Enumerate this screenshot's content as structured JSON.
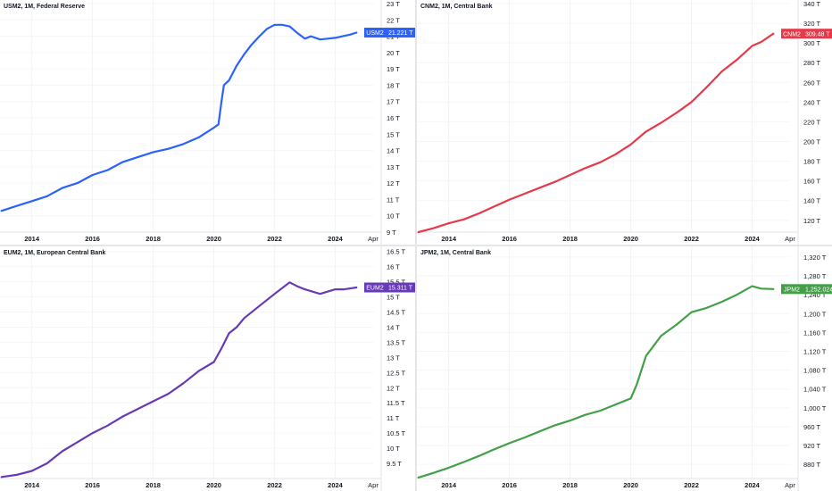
{
  "chart_data": [
    {
      "id": "usm2",
      "type": "line",
      "title": "USM2, 1M, Federal Reserve",
      "series": [
        {
          "name": "USM2",
          "color": "#2962ff",
          "x": [
            2013.0,
            2013.5,
            2014.0,
            2014.5,
            2015.0,
            2015.5,
            2016.0,
            2016.5,
            2017.0,
            2017.5,
            2018.0,
            2018.5,
            2019.0,
            2019.5,
            2020.0,
            2020.15,
            2020.25,
            2020.33,
            2020.5,
            2020.75,
            2021.0,
            2021.25,
            2021.5,
            2021.75,
            2022.0,
            2022.25,
            2022.5,
            2022.75,
            2023.0,
            2023.2,
            2023.5,
            2023.75,
            2024.0,
            2024.25,
            2024.5,
            2024.7
          ],
          "y": [
            10.3,
            10.6,
            10.9,
            11.2,
            11.7,
            12.0,
            12.5,
            12.8,
            13.3,
            13.6,
            13.9,
            14.1,
            14.4,
            14.8,
            15.4,
            15.6,
            17.0,
            18.0,
            18.3,
            19.2,
            19.9,
            20.5,
            21.0,
            21.45,
            21.7,
            21.7,
            21.6,
            21.2,
            20.85,
            21.0,
            20.8,
            20.85,
            20.9,
            21.0,
            21.1,
            21.221
          ]
        }
      ],
      "last_value_label": "21.221 T",
      "x_ticks": [
        "2014",
        "2016",
        "2018",
        "2020",
        "2022",
        "2024",
        "Apr"
      ],
      "y_ticks": [
        "9 T",
        "10 T",
        "11 T",
        "12 T",
        "13 T",
        "14 T",
        "15 T",
        "16 T",
        "17 T",
        "18 T",
        "19 T",
        "20 T",
        "21 T",
        "22 T",
        "23 T"
      ],
      "ylim": [
        9,
        23
      ]
    },
    {
      "id": "cnm2",
      "type": "line",
      "title": "CNM2, 1M, Central Bank",
      "series": [
        {
          "name": "CNM2",
          "color": "#e63a4a",
          "x": [
            2013.0,
            2013.5,
            2014.0,
            2014.5,
            2015.0,
            2015.5,
            2016.0,
            2016.5,
            2017.0,
            2017.5,
            2018.0,
            2018.5,
            2019.0,
            2019.5,
            2020.0,
            2020.5,
            2021.0,
            2021.5,
            2022.0,
            2022.5,
            2023.0,
            2023.5,
            2024.0,
            2024.3,
            2024.7
          ],
          "y": [
            108,
            112,
            117,
            121,
            127,
            134,
            141,
            147,
            153,
            159,
            166,
            173,
            179,
            187,
            197,
            210,
            219,
            229,
            240,
            255,
            271,
            283,
            297,
            301,
            309.48
          ]
        }
      ],
      "last_value_label": "309.48 T",
      "x_ticks": [
        "2014",
        "2016",
        "2018",
        "2020",
        "2022",
        "2024",
        "Apr"
      ],
      "y_ticks": [
        "120 T",
        "140 T",
        "160 T",
        "180 T",
        "200 T",
        "220 T",
        "240 T",
        "260 T",
        "280 T",
        "300 T",
        "320 T",
        "340 T"
      ],
      "ylim": [
        108,
        340
      ]
    },
    {
      "id": "eum2",
      "type": "line",
      "title": "EUM2, 1M, European Central Bank",
      "series": [
        {
          "name": "EUM2",
          "color": "#673ab7",
          "x": [
            2013.0,
            2013.5,
            2014.0,
            2014.5,
            2015.0,
            2015.5,
            2016.0,
            2016.5,
            2017.0,
            2017.5,
            2018.0,
            2018.5,
            2019.0,
            2019.5,
            2020.0,
            2020.25,
            2020.5,
            2020.75,
            2021.0,
            2021.5,
            2022.0,
            2022.5,
            2022.75,
            2023.0,
            2023.5,
            2024.0,
            2024.3,
            2024.7
          ],
          "y": [
            9.05,
            9.12,
            9.25,
            9.5,
            9.9,
            10.2,
            10.5,
            10.75,
            11.05,
            11.3,
            11.55,
            11.8,
            12.15,
            12.55,
            12.85,
            13.3,
            13.8,
            14.0,
            14.3,
            14.7,
            15.1,
            15.48,
            15.35,
            15.25,
            15.1,
            15.25,
            15.25,
            15.311
          ]
        }
      ],
      "last_value_label": "15.311 T",
      "x_ticks": [
        "2014",
        "2016",
        "2018",
        "2020",
        "2022",
        "2024",
        "Apr"
      ],
      "y_ticks": [
        "9.5 T",
        "10 T",
        "10.5 T",
        "11 T",
        "11.5 T",
        "12 T",
        "12.5 T",
        "13 T",
        "13.5 T",
        "14 T",
        "14.5 T",
        "15 T",
        "15.5 T",
        "16 T",
        "16.5 T"
      ],
      "ylim": [
        9.0,
        16.55
      ]
    },
    {
      "id": "jpm2",
      "type": "line",
      "title": "JPM2, 1M, Central Bank",
      "series": [
        {
          "name": "JPM2",
          "color": "#43a047",
          "x": [
            2013.0,
            2013.5,
            2014.0,
            2014.5,
            2015.0,
            2015.5,
            2016.0,
            2016.5,
            2017.0,
            2017.5,
            2018.0,
            2018.5,
            2019.0,
            2019.5,
            2020.0,
            2020.2,
            2020.5,
            2021.0,
            2021.5,
            2022.0,
            2022.5,
            2023.0,
            2023.5,
            2024.0,
            2024.3,
            2024.7
          ],
          "y": [
            852,
            862,
            873,
            885,
            898,
            912,
            925,
            937,
            950,
            963,
            973,
            985,
            994,
            1007,
            1020,
            1050,
            1110,
            1153,
            1176,
            1203,
            1212,
            1225,
            1240,
            1258,
            1253,
            1252.024
          ]
        }
      ],
      "last_value_label": "1,252.024 T",
      "x_ticks": [
        "2014",
        "2016",
        "2018",
        "2020",
        "2022",
        "2024",
        "Apr"
      ],
      "y_ticks": [
        "880 T",
        "920 T",
        "960 T",
        "1,000 T",
        "1,040 T",
        "1,080 T",
        "1,120 T",
        "1,160 T",
        "1,200 T",
        "1,240 T",
        "1,280 T",
        "1,320 T"
      ],
      "ylim": [
        850,
        1335
      ]
    }
  ]
}
